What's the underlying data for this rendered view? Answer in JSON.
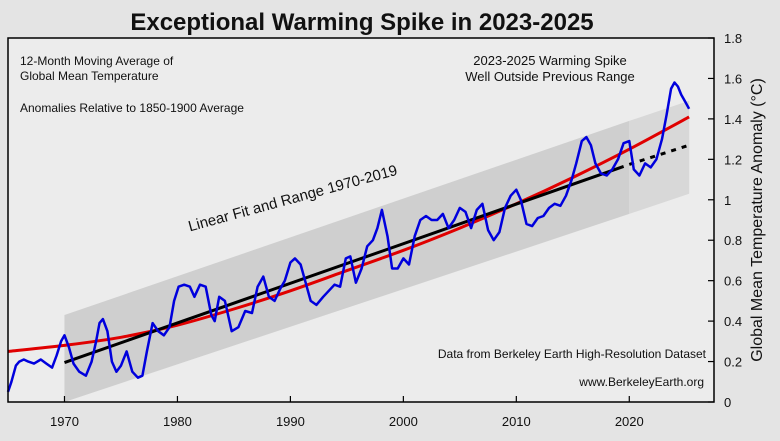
{
  "chart_data": {
    "type": "line",
    "title": "Exceptional Warming Spike in 2023-2025",
    "xlabel": "",
    "ylabel": "Global Mean Temperature Anomaly (°C)",
    "xlim": [
      1965,
      2027.5
    ],
    "ylim": [
      0,
      1.8
    ],
    "xticks": [
      1970,
      1980,
      1990,
      2000,
      2010,
      2020
    ],
    "yticks": [
      0,
      0.2,
      0.4,
      0.6,
      0.8,
      1,
      1.2,
      1.4,
      1.6,
      1.8
    ],
    "xtick_labels": [
      "1970",
      "1980",
      "1990",
      "2000",
      "2010",
      "2020"
    ],
    "ytick_labels": [
      "0",
      "0.2",
      "0.4",
      "0.6",
      "0.8",
      "1",
      "1.2",
      "1.4",
      "1.6",
      "1.8"
    ],
    "grid": false,
    "annotations": {
      "top_left_line1": "12-Month Moving Average of",
      "top_left_line2": "Global Mean Temperature",
      "baseline": "Anomalies Relative to 1850-1900 Average",
      "spike_line1": "2023-2025 Warming Spike",
      "spike_line2": "Well Outside Previous Range",
      "fit_label": "Linear Fit and Range 1970-2019",
      "source": "Data from Berkeley Earth High-Resolution Dataset",
      "website": "www.BerkeleyEarth.org"
    },
    "colors": {
      "temperature": "#0000dd",
      "trend_curve": "#e00000",
      "linear_fit": "#000000",
      "band": "#cfcfcf",
      "band_ext": "#d8d8d8"
    },
    "linear_fit": {
      "x": [
        1970,
        2019.5
      ],
      "y": [
        0.195,
        1.165
      ]
    },
    "linear_extension": {
      "x": [
        2020,
        2025.3
      ],
      "y": [
        1.175,
        1.27
      ]
    },
    "range_band": {
      "x": [
        1970,
        2020
      ],
      "upper": [
        0.43,
        1.39
      ],
      "lower": [
        -0.05,
        0.93
      ]
    },
    "range_band_ext": {
      "x": [
        2020,
        2025.3
      ],
      "upper": [
        1.39,
        1.49
      ],
      "lower": [
        0.93,
        1.03
      ]
    },
    "series": [
      {
        "name": "Smooth trend",
        "x": [
          1965,
          1970,
          1975,
          1980,
          1985,
          1990,
          1995,
          2000,
          2005,
          2010,
          2015,
          2020,
          2025.3
        ],
        "values": [
          0.25,
          0.28,
          0.32,
          0.38,
          0.46,
          0.55,
          0.65,
          0.75,
          0.86,
          0.98,
          1.11,
          1.25,
          1.41
        ]
      },
      {
        "name": "12-Month Moving Average",
        "x": [
          1965,
          1965.3,
          1965.7,
          1966,
          1966.4,
          1966.8,
          1967.3,
          1967.9,
          1968.4,
          1968.9,
          1969.3,
          1969.7,
          1970,
          1970.4,
          1970.8,
          1971.3,
          1971.9,
          1972.4,
          1972.8,
          1973.1,
          1973.4,
          1973.8,
          1974.2,
          1974.6,
          1975,
          1975.5,
          1976,
          1976.5,
          1976.9,
          1977.3,
          1977.8,
          1978.3,
          1978.8,
          1979.3,
          1979.7,
          1980.1,
          1980.6,
          1981.1,
          1981.5,
          1982,
          1982.5,
          1983,
          1983.3,
          1983.7,
          1984.2,
          1984.8,
          1985.4,
          1986,
          1986.6,
          1987.1,
          1987.6,
          1988.1,
          1988.6,
          1989.1,
          1989.5,
          1990,
          1990.4,
          1990.9,
          1991.3,
          1991.8,
          1992.3,
          1992.9,
          1993.4,
          1993.9,
          1994.4,
          1994.9,
          1995.3,
          1995.8,
          1996.3,
          1996.8,
          1997.3,
          1997.7,
          1998.1,
          1998.6,
          1999,
          1999.5,
          2000,
          2000.5,
          2001,
          2001.5,
          2002,
          2002.5,
          2003,
          2003.5,
          2004,
          2004.5,
          2005,
          2005.5,
          2006,
          2006.5,
          2007,
          2007.5,
          2008,
          2008.5,
          2009,
          2009.5,
          2010,
          2010.4,
          2010.9,
          2011.4,
          2011.9,
          2012.4,
          2012.9,
          2013.4,
          2013.9,
          2014.4,
          2014.9,
          2015.3,
          2015.8,
          2016.2,
          2016.6,
          2017,
          2017.5,
          2018,
          2018.5,
          2019,
          2019.5,
          2020,
          2020.4,
          2020.9,
          2021.4,
          2021.9,
          2022.4,
          2022.9,
          2023.3,
          2023.7,
          2024,
          2024.3,
          2024.6,
          2025,
          2025.3
        ],
        "values": [
          0.05,
          0.1,
          0.18,
          0.2,
          0.21,
          0.2,
          0.19,
          0.21,
          0.19,
          0.17,
          0.23,
          0.3,
          0.33,
          0.27,
          0.19,
          0.15,
          0.13,
          0.2,
          0.3,
          0.39,
          0.41,
          0.35,
          0.2,
          0.15,
          0.18,
          0.25,
          0.15,
          0.12,
          0.13,
          0.25,
          0.39,
          0.35,
          0.33,
          0.37,
          0.5,
          0.57,
          0.58,
          0.57,
          0.52,
          0.58,
          0.57,
          0.43,
          0.4,
          0.52,
          0.5,
          0.35,
          0.37,
          0.45,
          0.44,
          0.57,
          0.62,
          0.52,
          0.5,
          0.56,
          0.6,
          0.69,
          0.71,
          0.68,
          0.6,
          0.5,
          0.48,
          0.52,
          0.55,
          0.58,
          0.57,
          0.71,
          0.72,
          0.59,
          0.66,
          0.77,
          0.8,
          0.86,
          0.95,
          0.82,
          0.66,
          0.66,
          0.71,
          0.68,
          0.82,
          0.9,
          0.92,
          0.9,
          0.9,
          0.93,
          0.86,
          0.9,
          0.96,
          0.94,
          0.86,
          0.95,
          0.98,
          0.85,
          0.8,
          0.84,
          0.96,
          1.02,
          1.05,
          1.0,
          0.88,
          0.87,
          0.91,
          0.92,
          0.96,
          0.98,
          0.97,
          1.02,
          1.1,
          1.18,
          1.29,
          1.31,
          1.27,
          1.18,
          1.13,
          1.12,
          1.15,
          1.2,
          1.28,
          1.29,
          1.15,
          1.12,
          1.18,
          1.16,
          1.2,
          1.3,
          1.42,
          1.55,
          1.58,
          1.56,
          1.52,
          1.48,
          1.45
        ]
      }
    ]
  }
}
